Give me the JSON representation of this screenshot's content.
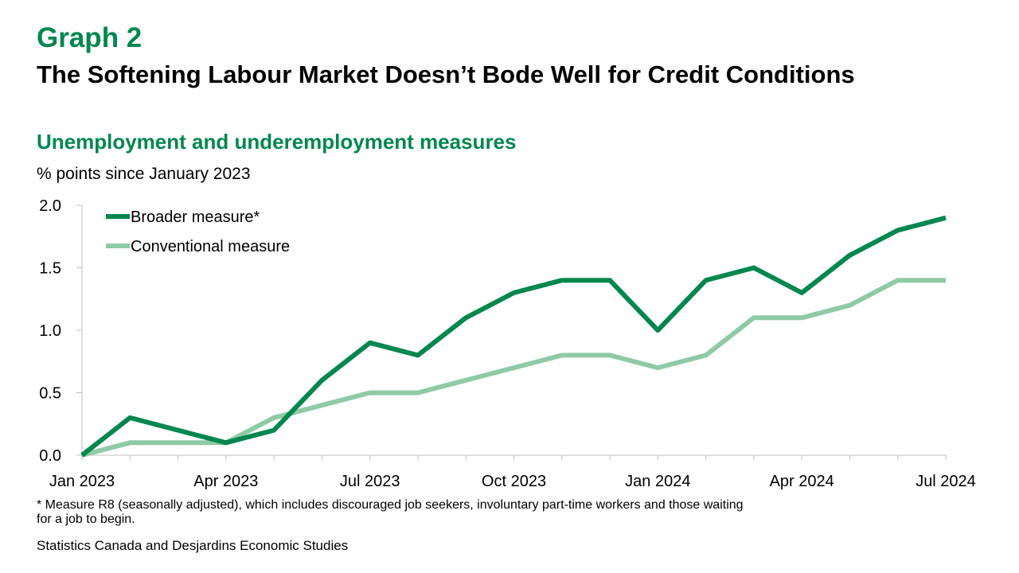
{
  "header": {
    "graph_label": "Graph 2",
    "title": "The Softening Labour Market Doesn’t Bode Well for Credit Conditions"
  },
  "chart_data": {
    "type": "line",
    "title": "Unemployment and underemployment measures",
    "ylabel": "% points since January 2023",
    "ylim": [
      0,
      2
    ],
    "yticks": [
      "0.0",
      "0.5",
      "1.0",
      "1.5",
      "2.0"
    ],
    "x": [
      "2023-01",
      "2023-02",
      "2023-03",
      "2023-04",
      "2023-05",
      "2023-06",
      "2023-07",
      "2023-08",
      "2023-09",
      "2023-10",
      "2023-11",
      "2023-12",
      "2024-01",
      "2024-02",
      "2024-03",
      "2024-04",
      "2024-05",
      "2024-06",
      "2024-07"
    ],
    "xtick_labels": [
      "Jan 2023",
      "Apr 2023",
      "Jul 2023",
      "Oct 2023",
      "Jan 2024",
      "Apr 2024",
      "Jul 2024"
    ],
    "grid": false,
    "legend_position": "top-left",
    "series": [
      {
        "name": "Broader measure*",
        "color": "#00874e",
        "values": [
          0.0,
          0.3,
          0.2,
          0.1,
          0.2,
          0.6,
          0.9,
          0.8,
          1.1,
          1.3,
          1.4,
          1.4,
          1.0,
          1.4,
          1.5,
          1.3,
          1.6,
          1.8,
          1.9
        ]
      },
      {
        "name": "Conventional measure",
        "color": "#8fcaa6",
        "values": [
          0.0,
          0.1,
          0.1,
          0.1,
          0.3,
          0.4,
          0.5,
          0.5,
          0.6,
          0.7,
          0.8,
          0.8,
          0.7,
          0.8,
          1.1,
          1.1,
          1.2,
          1.4,
          1.4
        ]
      }
    ]
  },
  "footnote": "* Measure R8 (seasonally adjusted), which includes discouraged job seekers, involuntary part-time workers and those waiting for a job to begin.",
  "source": "Statistics Canada and Desjardins Economic Studies"
}
